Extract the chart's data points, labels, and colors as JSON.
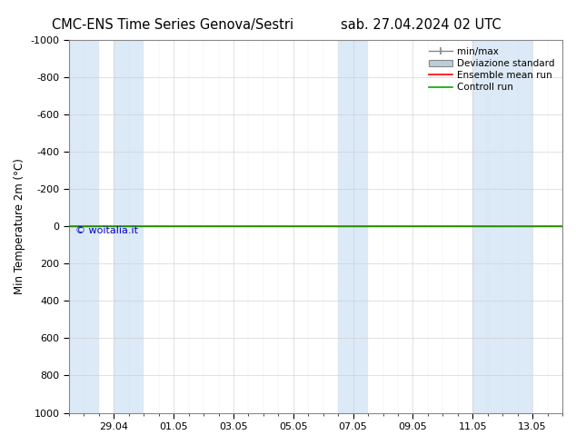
{
  "title_left": "CMC-ENS Time Series Genova/Sestri",
  "title_right": "sab. 27.04.2024 02 UTC",
  "ylabel": "Min Temperature 2m (°C)",
  "ylim_bottom": 1000,
  "ylim_top": -1000,
  "yticks": [
    1000,
    800,
    600,
    400,
    200,
    0,
    -200,
    -400,
    -600,
    -800,
    -1000
  ],
  "xlim_start": 0.0,
  "xlim_end": 16.5,
  "x_tick_positions": [
    1.5,
    3.5,
    5.5,
    7.5,
    9.5,
    11.5,
    13.5,
    15.5
  ],
  "x_tick_labels": [
    "29.04",
    "01.05",
    "03.05",
    "05.05",
    "07.05",
    "09.05",
    "11.05",
    "13.05"
  ],
  "background_color": "#ffffff",
  "plot_bg_color": "#ffffff",
  "shaded_bands": [
    [
      0.0,
      1.0
    ],
    [
      1.5,
      2.5
    ],
    [
      9.0,
      10.0
    ],
    [
      13.5,
      15.5
    ]
  ],
  "shaded_color": "#dce9f7",
  "control_run_y": 0.0,
  "control_run_color": "#00aa00",
  "ensemble_mean_color": "#ff0000",
  "ensemble_mean_y": 0.0,
  "copyright_text": "© woitalia.it",
  "copyright_color": "#0000cc",
  "legend_labels": [
    "min/max",
    "Deviazione standard",
    "Ensemble mean run",
    "Controll run"
  ],
  "minmax_color": "#888888",
  "devstd_color": "#bbccdd",
  "title_fontsize": 10.5,
  "axis_label_fontsize": 8.5,
  "tick_fontsize": 8,
  "legend_fontsize": 7.5
}
